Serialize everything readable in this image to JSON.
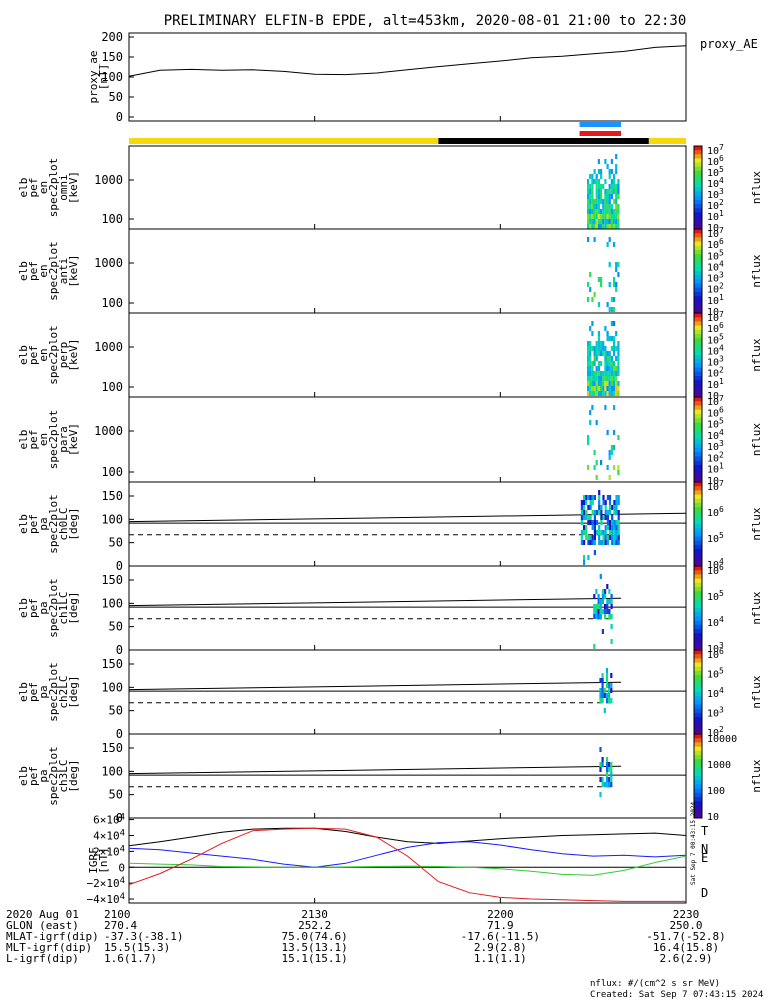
{
  "title": "PRELIMINARY ELFIN-B EPDE, alt=453km, 2020-08-01 21:00 to 22:30",
  "colors": {
    "sunlit_bar": "#f5d90a",
    "shadow_bar": "#000000",
    "science_zone_blue": "#1e90ff",
    "science_zone_red": "#e41a1c",
    "bfield_T": "#000000",
    "bfield_N": "#1a1aff",
    "bfield_E": "#33cc33",
    "bfield_D": "#e41a1c"
  },
  "chart_data": [
    {
      "type": "line",
      "panel": "proxy_ae",
      "ylabel": "proxy_ae\n[nT]",
      "legend": "proxy_AE",
      "ylim": [
        -10,
        210
      ],
      "yticks": [
        "0",
        "50",
        "100",
        "150",
        "200"
      ],
      "x_minutes": [
        0,
        5,
        10,
        15,
        20,
        25,
        30,
        35,
        40,
        45,
        50,
        55,
        60,
        65,
        70,
        75,
        80,
        85,
        90
      ],
      "values": [
        102,
        117,
        119,
        117,
        118,
        114,
        107,
        106,
        110,
        118,
        126,
        133,
        140,
        148,
        152,
        158,
        164,
        174,
        178
      ]
    },
    {
      "type": "heatmap",
      "panel": "en_spec2plot_omni",
      "ylabel": [
        "elb",
        "pef",
        "en",
        "spec2plot",
        "omni",
        "[keV]"
      ],
      "ylog": true,
      "yticks": [
        "100",
        "1000"
      ],
      "colorbar_label": "nflux",
      "colorbar_ticks": [
        "10",
        "10^1",
        "10^2",
        "10^3",
        "10^4",
        "10^5",
        "10^6",
        "10^7"
      ],
      "active_window_minutes": [
        74,
        79
      ]
    },
    {
      "type": "heatmap",
      "panel": "en_spec2plot_anti",
      "ylabel": [
        "elb",
        "pef",
        "en",
        "spec2plot",
        "anti",
        "[keV]"
      ],
      "ylog": true,
      "yticks": [
        "100",
        "1000"
      ],
      "colorbar_label": "nflux",
      "colorbar_ticks": [
        "10",
        "10^1",
        "10^2",
        "10^3",
        "10^4",
        "10^5",
        "10^6",
        "10^7"
      ],
      "active_window_minutes": [
        74,
        79
      ]
    },
    {
      "type": "heatmap",
      "panel": "en_spec2plot_perp",
      "ylabel": [
        "elb",
        "pef",
        "en",
        "spec2plot",
        "perp",
        "[keV]"
      ],
      "ylog": true,
      "yticks": [
        "100",
        "1000"
      ],
      "colorbar_label": "nflux",
      "colorbar_ticks": [
        "10",
        "10^1",
        "10^2",
        "10^3",
        "10^4",
        "10^5",
        "10^6",
        "10^7"
      ],
      "active_window_minutes": [
        74,
        79
      ]
    },
    {
      "type": "heatmap",
      "panel": "en_spec2plot_para",
      "ylabel": [
        "elb",
        "pef",
        "en",
        "spec2plot",
        "para",
        "[keV]"
      ],
      "ylog": true,
      "yticks": [
        "100",
        "1000"
      ],
      "colorbar_label": "nflux",
      "colorbar_ticks": [
        "10",
        "10^1",
        "10^2",
        "10^3",
        "10^4",
        "10^5",
        "10^6",
        "10^7"
      ],
      "active_window_minutes": [
        74,
        79
      ]
    },
    {
      "type": "heatmap",
      "panel": "pa_spec2plot_ch0LC",
      "ylabel": [
        "elb",
        "pef",
        "pa",
        "spec2plot",
        "ch0LC",
        "[deg]"
      ],
      "yticks": [
        "0",
        "50",
        "100",
        "150"
      ],
      "ylim": [
        0,
        180
      ],
      "colorbar_label": "nflux",
      "colorbar_ticks": [
        "10^4",
        "10^5",
        "10^6",
        "10^7"
      ],
      "loss_cone_deg": [
        95,
        113
      ],
      "anti_loss_cone_deg": [
        67,
        67
      ],
      "active_window_minutes": [
        73,
        79
      ]
    },
    {
      "type": "heatmap",
      "panel": "pa_spec2plot_ch1LC",
      "ylabel": [
        "elb",
        "pef",
        "pa",
        "spec2plot",
        "ch1LC",
        "[deg]"
      ],
      "yticks": [
        "0",
        "50",
        "100",
        "150"
      ],
      "ylim": [
        0,
        180
      ],
      "colorbar_label": "nflux",
      "colorbar_ticks": [
        "10^3",
        "10^4",
        "10^5",
        "10^6"
      ],
      "loss_cone_deg": [
        95,
        113
      ],
      "anti_loss_cone_deg": [
        67,
        67
      ],
      "active_window_minutes": [
        75,
        78
      ]
    },
    {
      "type": "heatmap",
      "panel": "pa_spec2plot_ch2LC",
      "ylabel": [
        "elb",
        "pef",
        "pa",
        "spec2plot",
        "ch2LC",
        "[deg]"
      ],
      "yticks": [
        "0",
        "50",
        "100",
        "150"
      ],
      "ylim": [
        0,
        180
      ],
      "colorbar_label": "nflux",
      "colorbar_ticks": [
        "10^2",
        "10^3",
        "10^4",
        "10^5",
        "10^6"
      ],
      "loss_cone_deg": [
        95,
        113
      ],
      "anti_loss_cone_deg": [
        67,
        67
      ],
      "active_window_minutes": [
        76,
        78
      ]
    },
    {
      "type": "heatmap",
      "panel": "pa_spec2plot_ch3LC",
      "ylabel": [
        "elb",
        "pef",
        "pa",
        "spec2plot",
        "ch3LC",
        "[deg]"
      ],
      "yticks": [
        "0",
        "50",
        "100",
        "150"
      ],
      "ylim": [
        0,
        180
      ],
      "colorbar_label": "nflux",
      "colorbar_ticks": [
        "10",
        "100",
        "1000",
        "10000"
      ],
      "loss_cone_deg": [
        95,
        113
      ],
      "anti_loss_cone_deg": [
        67,
        67
      ],
      "active_window_minutes": [
        76,
        78
      ]
    },
    {
      "type": "line",
      "panel": "igrf",
      "ylabel": "IGRF\n[nT]",
      "ylim": [
        -45000,
        62000
      ],
      "yticks": [
        "6×10^4",
        "4×10^4",
        "2×10^4",
        "0",
        "−2×10^4",
        "−4×10^4"
      ],
      "x_minutes": [
        0,
        5,
        10,
        15,
        20,
        25,
        30,
        35,
        40,
        45,
        50,
        55,
        60,
        65,
        70,
        75,
        80,
        85,
        90
      ],
      "series": [
        {
          "name": "T",
          "color": "#000000",
          "values": [
            27000,
            32000,
            38000,
            44000,
            48000,
            49000,
            49000,
            45000,
            38000,
            32000,
            30000,
            33000,
            36000,
            38000,
            40000,
            41000,
            42000,
            43000,
            40000
          ]
        },
        {
          "name": "N",
          "color": "#1a1aff",
          "values": [
            24000,
            22000,
            18000,
            14000,
            10000,
            4000,
            0,
            5000,
            15000,
            25000,
            31000,
            32000,
            28000,
            22000,
            17000,
            14000,
            15000,
            13000,
            15000
          ]
        },
        {
          "name": "E",
          "color": "#33cc33",
          "values": [
            5000,
            4000,
            3000,
            1000,
            500,
            0,
            0,
            500,
            1000,
            1500,
            1000,
            0,
            -2000,
            -5000,
            -9000,
            -10000,
            -4000,
            6000,
            14000
          ]
        },
        {
          "name": "D",
          "color": "#e41a1c",
          "values": [
            -22000,
            -8000,
            10000,
            30000,
            46000,
            48000,
            49000,
            48000,
            38000,
            14000,
            -18000,
            -32000,
            -38000,
            -40000,
            -41000,
            -42000,
            -43000,
            -43000,
            -43000
          ]
        }
      ]
    }
  ],
  "xaxis": {
    "tick_labels": [
      "2100",
      "2130",
      "2200",
      "2230"
    ],
    "rows": [
      {
        "label": "2020 Aug 01",
        "values": [
          "2100",
          "2130",
          "2200",
          "2230"
        ]
      },
      {
        "label": "GLON (east)",
        "values": [
          "270.4",
          "252.2",
          "71.9",
          "250.0"
        ]
      },
      {
        "label": "MLAT-igrf(dip)",
        "values": [
          "-37.3(-38.1)",
          "75.0(74.6)",
          "-17.6(-11.5)",
          "-51.7(-52.8)"
        ]
      },
      {
        "label": "MLT-igrf(dip)",
        "values": [
          "15.5(15.3)",
          "13.5(13.1)",
          "2.9(2.8)",
          "16.4(15.8)"
        ]
      },
      {
        "label": "L-igrf(dip)",
        "values": [
          "1.6(1.7)",
          "15.1(15.1)",
          "1.1(1.1)",
          "2.6(2.9)"
        ]
      }
    ]
  },
  "footer": {
    "units": "nflux: #/(cm^2 s sr MeV)",
    "created": "Created: Sat Sep  7 07:43:15 2024",
    "side_stamp": "Sat Sep  7 00:43:15 2024"
  }
}
